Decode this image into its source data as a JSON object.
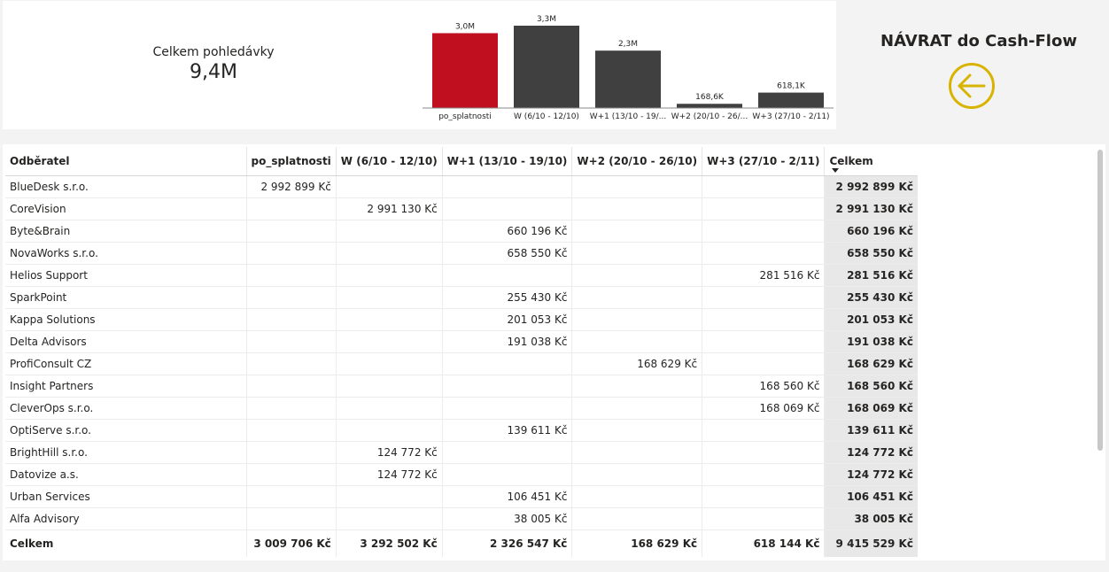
{
  "kpi": {
    "label": "Celkem pohledávky",
    "value": "9,4M"
  },
  "nav": {
    "title": "NÁVRAT do Cash-Flow",
    "accent_color": "#d8b400",
    "icon": "arrow-left-circle-icon"
  },
  "chart_data": {
    "type": "bar",
    "categories": [
      "po_splatnosti",
      "W (6/10 - 12/10)",
      "W+1 (13/10 - 19/...",
      "W+2 (20/10 - 26/...",
      "W+3 (27/10 - 2/11)"
    ],
    "values": [
      3.0,
      3.3,
      2.3,
      0.1686,
      0.6181
    ],
    "data_labels": [
      "3,0M",
      "3,3M",
      "2,3M",
      "168,6K",
      "618,1K"
    ],
    "colors": [
      "#c00f1e",
      "#404040",
      "#404040",
      "#404040",
      "#404040"
    ],
    "ylim": [
      0,
      3.3
    ]
  },
  "table": {
    "columns": [
      "Odběratel",
      "po_splatnosti",
      "W (6/10 - 12/10)",
      "W+1 (13/10 - 19/10)",
      "W+2 (20/10 - 26/10)",
      "W+3 (27/10 - 2/11)",
      "Celkem"
    ],
    "rows": [
      [
        "BlueDesk s.r.o.",
        "2 992 899 Kč",
        "",
        "",
        "",
        "",
        "2 992 899 Kč"
      ],
      [
        "CoreVision",
        "",
        "2 991 130 Kč",
        "",
        "",
        "",
        "2 991 130 Kč"
      ],
      [
        "Byte&Brain",
        "",
        "",
        "660 196 Kč",
        "",
        "",
        "660 196 Kč"
      ],
      [
        "NovaWorks s.r.o.",
        "",
        "",
        "658 550 Kč",
        "",
        "",
        "658 550 Kč"
      ],
      [
        "Helios Support",
        "",
        "",
        "",
        "",
        "281 516 Kč",
        "281 516 Kč"
      ],
      [
        "SparkPoint",
        "",
        "",
        "255 430 Kč",
        "",
        "",
        "255 430 Kč"
      ],
      [
        "Kappa Solutions",
        "",
        "",
        "201 053 Kč",
        "",
        "",
        "201 053 Kč"
      ],
      [
        "Delta Advisors",
        "",
        "",
        "191 038 Kč",
        "",
        "",
        "191 038 Kč"
      ],
      [
        "ProfiConsult CZ",
        "",
        "",
        "",
        "168 629 Kč",
        "",
        "168 629 Kč"
      ],
      [
        "Insight Partners",
        "",
        "",
        "",
        "",
        "168 560 Kč",
        "168 560 Kč"
      ],
      [
        "CleverOps s.r.o.",
        "",
        "",
        "",
        "",
        "168 069 Kč",
        "168 069 Kč"
      ],
      [
        "OptiServe s.r.o.",
        "",
        "",
        "139 611 Kč",
        "",
        "",
        "139 611 Kč"
      ],
      [
        "BrightHill s.r.o.",
        "",
        "124 772 Kč",
        "",
        "",
        "",
        "124 772 Kč"
      ],
      [
        "Datovize a.s.",
        "",
        "124 772 Kč",
        "",
        "",
        "",
        "124 772 Kč"
      ],
      [
        "Urban Services",
        "",
        "",
        "106 451 Kč",
        "",
        "",
        "106 451 Kč"
      ],
      [
        "Alfa Advisory",
        "",
        "",
        "38 005 Kč",
        "",
        "",
        "38 005 Kč"
      ]
    ],
    "totals": [
      "Celkem",
      "3 009 706 Kč",
      "3 292 502 Kč",
      "2 326 547 Kč",
      "168 629 Kč",
      "618 144 Kč",
      "9 415 529 Kč"
    ]
  }
}
